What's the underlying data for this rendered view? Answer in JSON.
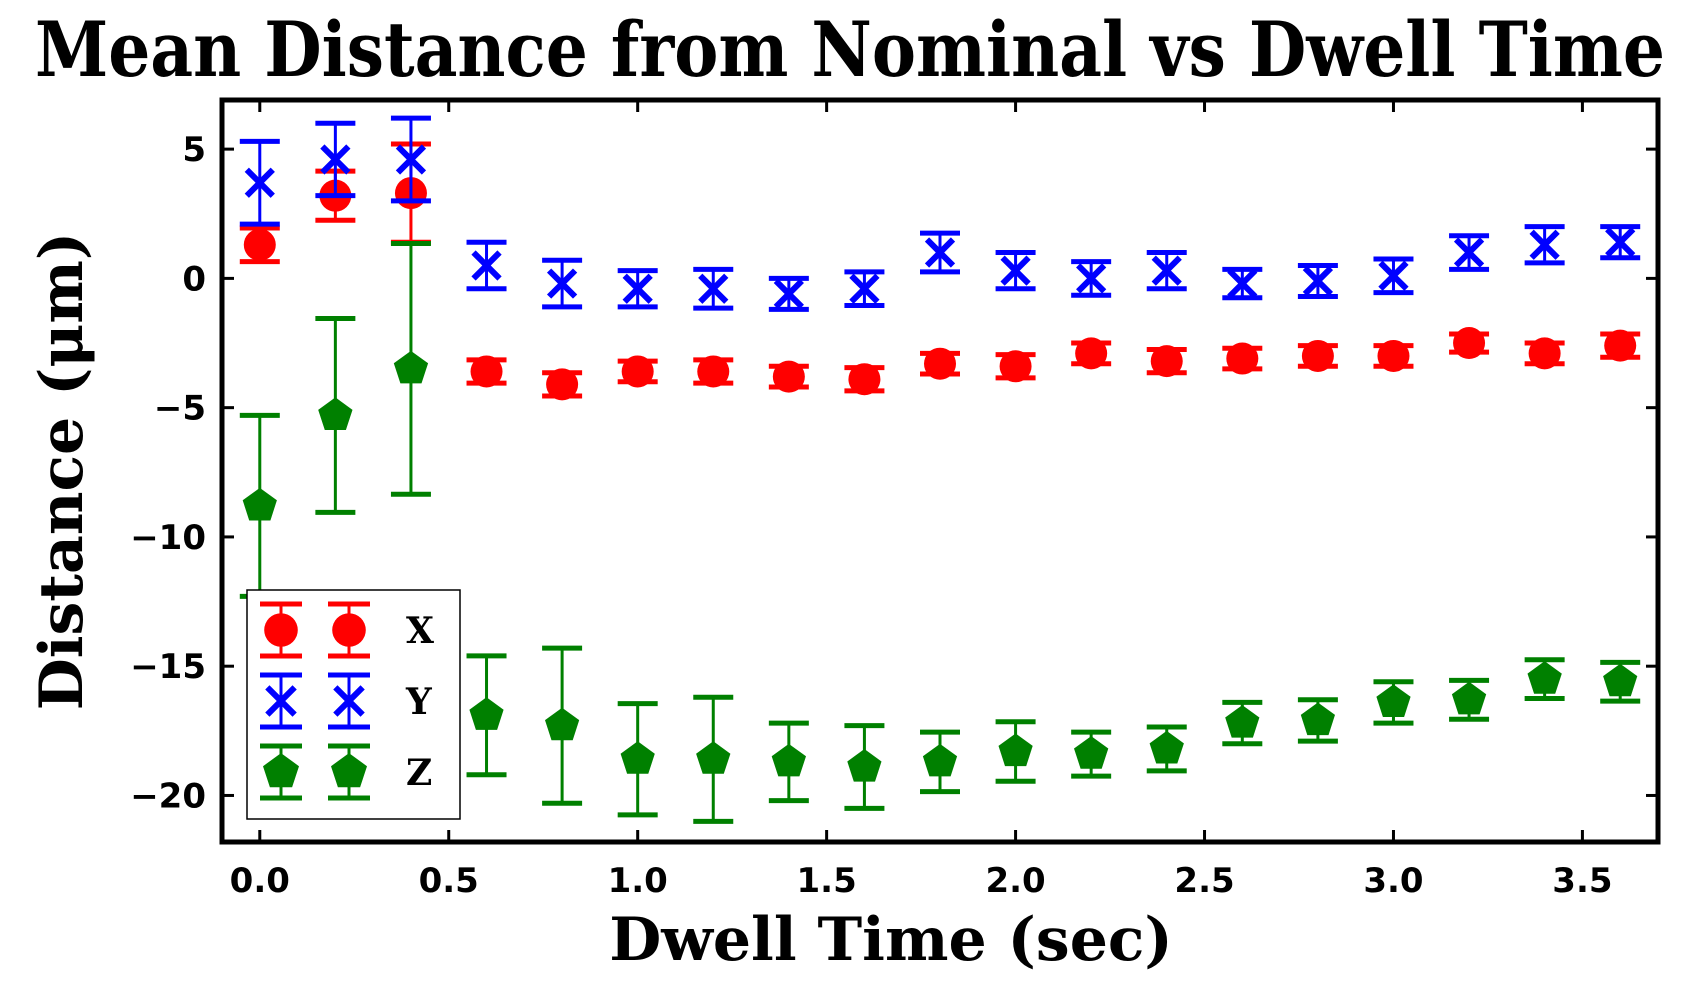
{
  "chart_data": {
    "type": "scatter",
    "title": "Mean Distance from Nominal vs Dwell Time",
    "xlabel": "Dwell Time (sec)",
    "ylabel": "Distance (μm)",
    "xlim": [
      -0.1,
      3.7
    ],
    "ylim": [
      -21.8,
      6.9
    ],
    "xticks": [
      0.0,
      0.5,
      1.0,
      1.5,
      2.0,
      2.5,
      3.0,
      3.5
    ],
    "xtick_labels": [
      "0.0",
      "0.5",
      "1.0",
      "1.5",
      "2.0",
      "2.5",
      "3.0",
      "3.5"
    ],
    "yticks": [
      5,
      0,
      -5,
      -10,
      -15,
      -20
    ],
    "ytick_labels": [
      "5",
      "0",
      "−5",
      "−10",
      "−15",
      "−20"
    ],
    "legend_position": "lower-left",
    "x": [
      0.0,
      0.2,
      0.4,
      0.6,
      0.8,
      1.0,
      1.2,
      1.4,
      1.6,
      1.8,
      2.0,
      2.2,
      2.4,
      2.6,
      2.8,
      3.0,
      3.2,
      3.4,
      3.6
    ],
    "series": [
      {
        "name": "X",
        "color": "#ff0000",
        "marker": "circle",
        "values": [
          1.3,
          3.2,
          3.3,
          -3.6,
          -4.1,
          -3.6,
          -3.6,
          -3.8,
          -3.9,
          -3.3,
          -3.4,
          -2.9,
          -3.2,
          -3.1,
          -3.0,
          -3.0,
          -2.5,
          -2.9,
          -2.6
        ],
        "errors": [
          0.65,
          0.95,
          1.9,
          0.45,
          0.45,
          0.4,
          0.45,
          0.4,
          0.45,
          0.4,
          0.45,
          0.4,
          0.45,
          0.4,
          0.4,
          0.4,
          0.35,
          0.4,
          0.45
        ]
      },
      {
        "name": "Y",
        "color": "#0000ff",
        "marker": "x",
        "values": [
          3.7,
          4.6,
          4.6,
          0.5,
          -0.2,
          -0.4,
          -0.4,
          -0.6,
          -0.4,
          1.0,
          0.3,
          0.0,
          0.3,
          -0.2,
          -0.1,
          0.1,
          1.0,
          1.3,
          1.4
        ],
        "errors": [
          1.6,
          1.4,
          1.6,
          0.9,
          0.9,
          0.7,
          0.75,
          0.6,
          0.65,
          0.75,
          0.7,
          0.65,
          0.7,
          0.55,
          0.6,
          0.65,
          0.65,
          0.7,
          0.6
        ]
      },
      {
        "name": "Z",
        "color": "#008000",
        "marker": "pentagon",
        "values": [
          -8.8,
          -5.3,
          -3.5,
          -16.9,
          -17.3,
          -18.6,
          -18.6,
          -18.7,
          -18.9,
          -18.7,
          -18.3,
          -18.4,
          -18.2,
          -17.2,
          -17.1,
          -16.4,
          -16.3,
          -15.5,
          -15.6
        ],
        "errors": [
          3.5,
          3.75,
          4.85,
          2.3,
          3.0,
          2.15,
          2.4,
          1.5,
          1.6,
          1.15,
          1.15,
          0.85,
          0.85,
          0.8,
          0.8,
          0.8,
          0.75,
          0.75,
          0.75
        ]
      }
    ]
  }
}
